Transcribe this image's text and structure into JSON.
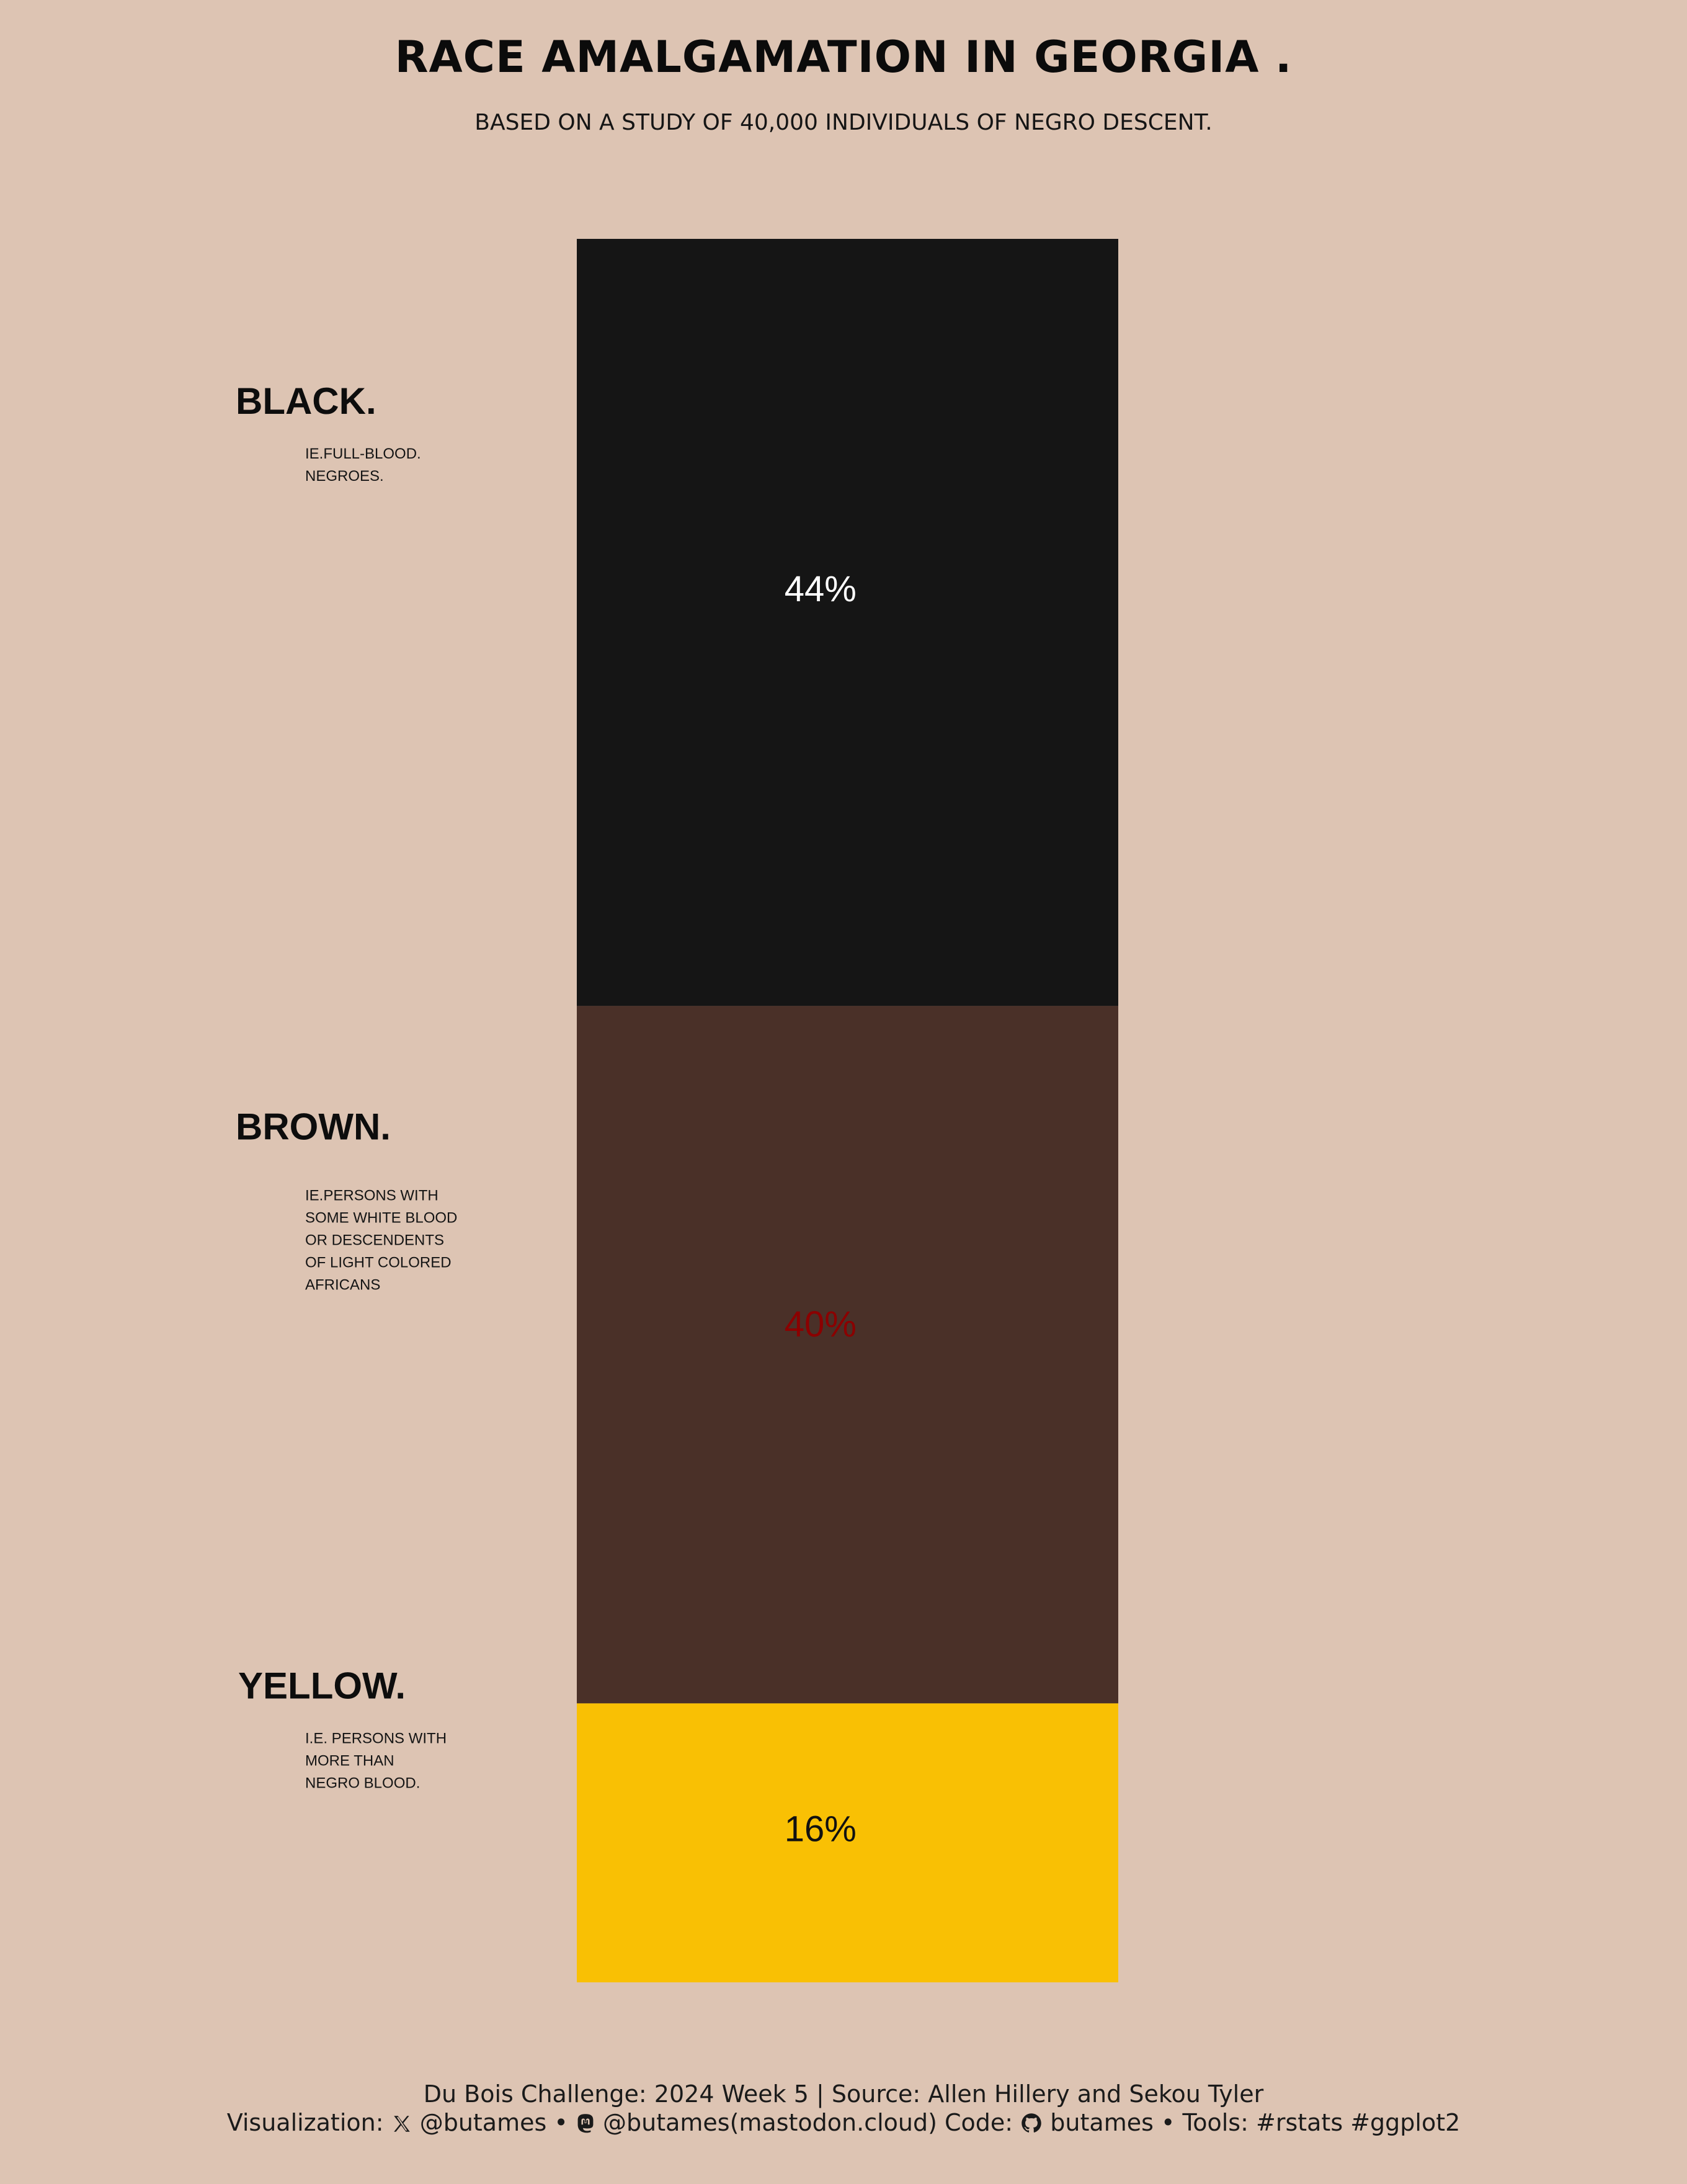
{
  "header": {
    "title": "RACE AMALGAMATION IN GEORGIA .",
    "subtitle": "BASED ON A STUDY OF 40,000 INDIVIDUALS OF NEGRO DESCENT."
  },
  "chart_data": {
    "type": "bar",
    "stacked": true,
    "orientation": "vertical-stack",
    "categories": [
      "BLACK.",
      "BROWN.",
      "YELLOW."
    ],
    "values": [
      44,
      40,
      16
    ],
    "value_labels": [
      "44%",
      "40%",
      "16%"
    ],
    "descriptions": [
      [
        "IE.FULL-BLOOD.",
        "NEGROES."
      ],
      [
        "IE.PERSONS WITH",
        "SOME WHITE BLOOD",
        "OR DESCENDENTS",
        "OF LIGHT COLORED",
        "AFRICANS"
      ],
      [
        "I.E. PERSONS WITH",
        "MORE THAN",
        "NEGRO BLOOD."
      ]
    ],
    "colors": [
      "#151515",
      "#4a3028",
      "#f9c004"
    ],
    "label_colors": [
      "#ffffff",
      "#8b0000",
      "#111111"
    ],
    "ylim": [
      0,
      100
    ],
    "grid": false,
    "legend": "none"
  },
  "caption": {
    "line1": "Du Bois Challenge: 2024 Week 5 | Source: Allen Hillery and Sekou Tyler",
    "viz_prefix": "Visualization:",
    "x_handle": "@butames",
    "mastodon_handle": "@butames(mastodon.cloud)",
    "code_prefix": "Code:",
    "github_handle": "butames",
    "tools": "Tools: #rstats #ggplot2",
    "separator": "•",
    "icons": [
      "x-logo-icon",
      "mastodon-icon",
      "github-icon"
    ]
  }
}
